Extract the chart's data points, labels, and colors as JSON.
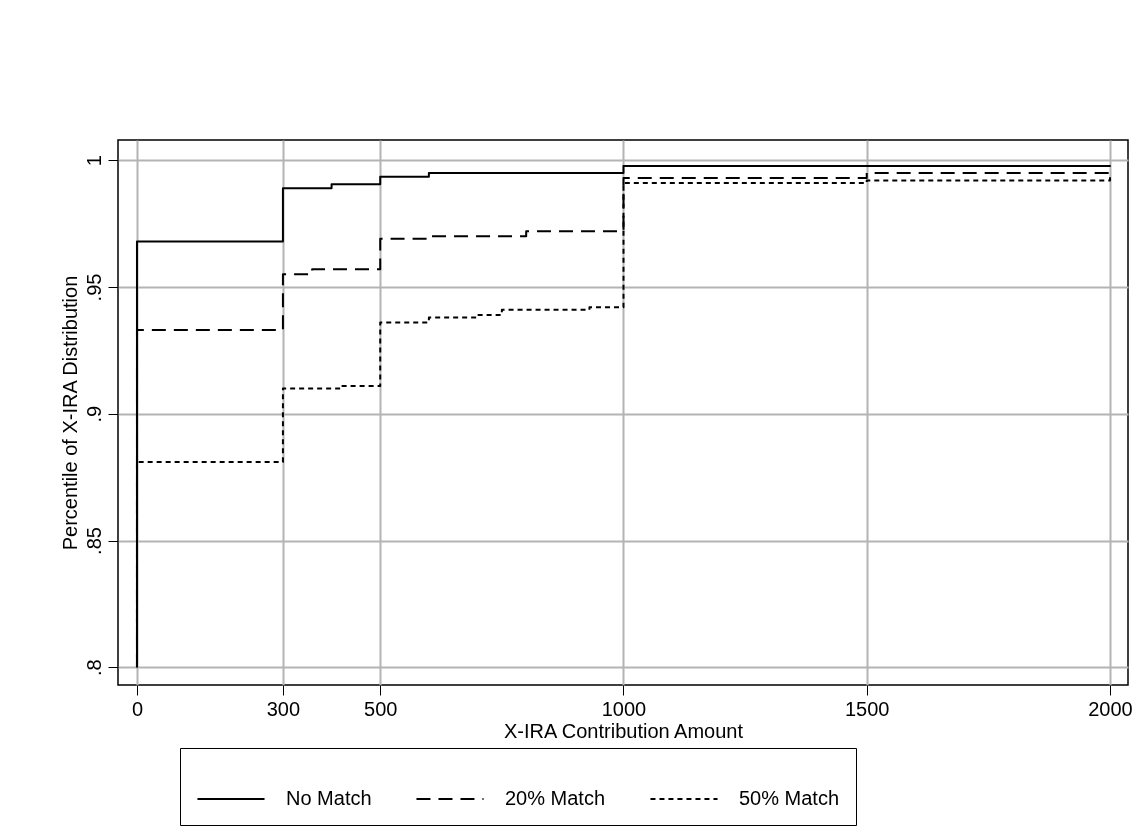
{
  "chart_data": {
    "type": "step",
    "xlabel": "X-IRA Contribution Amount",
    "ylabel": "Percentile of X-IRA Distribution",
    "xlim": [
      -39,
      2037
    ],
    "ylim": [
      0.793,
      1.008
    ],
    "xticks": [
      0,
      300,
      500,
      {
        "value": 1000,
        "label": "1000"
      },
      {
        "value": 1500,
        "label": "1500"
      },
      {
        "value": 2000,
        "label": "2000"
      }
    ],
    "yticks": [
      {
        "value": 0.8,
        "label": ".8"
      },
      {
        "value": 0.85,
        "label": ".85"
      },
      {
        "value": 0.9,
        "label": ".9"
      },
      {
        "value": 0.95,
        "label": ".95"
      },
      {
        "value": 1,
        "label": "1"
      }
    ],
    "grid": true,
    "legend": "bottom",
    "series": [
      {
        "name": "No Match",
        "color": "#000000",
        "line_style": "solid",
        "x": [
          0,
          0,
          300,
          300,
          400,
          500,
          600,
          1000,
          2000
        ],
        "values": [
          0.8,
          0.968,
          0.9685,
          0.989,
          0.9905,
          0.9935,
          0.995,
          0.9977,
          0.998
        ]
      },
      {
        "name": "20% Match",
        "color": "#000000",
        "line_style": "dashed",
        "x": [
          0,
          0,
          300,
          300,
          360,
          500,
          600,
          800,
          1000,
          1000,
          1500,
          2000
        ],
        "values": [
          0.8,
          0.933,
          0.933,
          0.955,
          0.957,
          0.969,
          0.97,
          0.972,
          0.973,
          0.993,
          0.995,
          0.996
        ]
      },
      {
        "name": "50% Match",
        "color": "#000000",
        "line_style": "dotted",
        "x": [
          0,
          0,
          300,
          300,
          420,
          500,
          500,
          600,
          700,
          750,
          930,
          1000,
          1000,
          1500,
          2000
        ],
        "values": [
          0.8,
          0.881,
          0.881,
          0.91,
          0.911,
          0.912,
          0.936,
          0.938,
          0.939,
          0.941,
          0.942,
          0.942,
          0.991,
          0.992,
          0.994
        ]
      }
    ]
  }
}
